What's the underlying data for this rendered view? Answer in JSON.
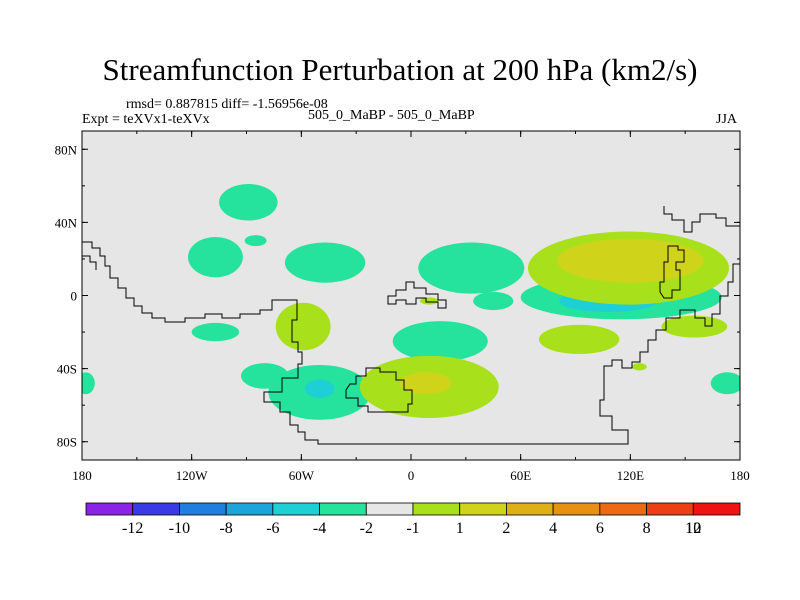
{
  "chart_data": {
    "type": "heatmap",
    "title": "Streamfunction Perturbation at 200 hPa (km2/s)",
    "stats": "rmsd= 0.887815 diff= -1.56956e-08",
    "experiment": "Expt = teXVx1-teXVx",
    "case": "505_0_MaBP - 505_0_MaBP",
    "season": "JJA",
    "x_ticks": [
      {
        "value": -180,
        "label": "180"
      },
      {
        "value": -120,
        "label": "120W"
      },
      {
        "value": -60,
        "label": "60W"
      },
      {
        "value": 0,
        "label": "0"
      },
      {
        "value": 60,
        "label": "60E"
      },
      {
        "value": 120,
        "label": "120E"
      },
      {
        "value": 180,
        "label": "180"
      }
    ],
    "y_ticks": [
      {
        "value": 80,
        "label": "80N"
      },
      {
        "value": 40,
        "label": "40N"
      },
      {
        "value": 0,
        "label": "0"
      },
      {
        "value": -40,
        "label": "40S"
      },
      {
        "value": -80,
        "label": "80S"
      }
    ],
    "xlim": [
      -180,
      180
    ],
    "ylim": [
      -90,
      90
    ],
    "colorbar": {
      "colors": [
        "#8a22e8",
        "#3a3ae6",
        "#1f7fe0",
        "#1aa6dd",
        "#1ecfd6",
        "#25e29c",
        "#e6e6e6",
        "#a9e01c",
        "#cfd41a",
        "#dfb016",
        "#e98f12",
        "#ee6a12",
        "#ee3e14",
        "#ee1212"
      ],
      "labels": [
        "-12",
        "-10",
        "-8",
        "-6",
        "-4",
        "-2",
        "-1",
        "1",
        "2",
        "4",
        "6",
        "8",
        "10",
        "12"
      ]
    },
    "contours": [
      {
        "level": "-1",
        "color": "#25e29c",
        "lon": -107,
        "lat": 21,
        "rlon": 15,
        "rlat": 11
      },
      {
        "level": "-1",
        "color": "#25e29c",
        "lon": -85,
        "lat": 30,
        "rlon": 6,
        "rlat": 3
      },
      {
        "level": "-1",
        "color": "#25e29c",
        "lon": -89,
        "lat": 51,
        "rlon": 16,
        "rlat": 10
      },
      {
        "level": "-1",
        "color": "#25e29c",
        "lon": -47,
        "lat": 18,
        "rlon": 22,
        "rlat": 11
      },
      {
        "level": "-1",
        "color": "#25e29c",
        "lon": -107,
        "lat": -20,
        "rlon": 13,
        "rlat": 5
      },
      {
        "level": "-1",
        "color": "#25e29c",
        "lon": -80,
        "lat": -44,
        "rlon": 13,
        "rlat": 7
      },
      {
        "level": "-1",
        "color": "#25e29c",
        "lon": -50,
        "lat": -53,
        "rlon": 28,
        "rlat": 15
      },
      {
        "level": "-2",
        "color": "#1ecfd6",
        "lon": -50,
        "lat": -51,
        "rlon": 8,
        "rlat": 5
      },
      {
        "level": "-1",
        "color": "#25e29c",
        "lon": 33,
        "lat": 15,
        "rlon": 29,
        "rlat": 14
      },
      {
        "level": "-1",
        "color": "#25e29c",
        "lon": 45,
        "lat": -3,
        "rlon": 11,
        "rlat": 5
      },
      {
        "level": "-1",
        "color": "#25e29c",
        "lon": 16,
        "lat": -25,
        "rlon": 26,
        "rlat": 11
      },
      {
        "level": "-1",
        "color": "#25e29c",
        "lon": 173,
        "lat": -48,
        "rlon": 9,
        "rlat": 6
      },
      {
        "level": "-1",
        "color": "#25e29c",
        "lon": -178,
        "lat": -48,
        "rlon": 5,
        "rlat": 6
      },
      {
        "level": "-1",
        "color": "#25e29c",
        "lon": 115,
        "lat": -1,
        "rlon": 55,
        "rlat": 12
      },
      {
        "level": "-2",
        "color": "#1ecfd6",
        "lon": 108,
        "lat": -3,
        "rlon": 27,
        "rlat": 6
      },
      {
        "level": "1",
        "color": "#a9e01c",
        "lon": -59,
        "lat": -17,
        "rlon": 15,
        "rlat": 13
      },
      {
        "level": "1",
        "color": "#a9e01c",
        "lon": 10,
        "lat": -50,
        "rlon": 38,
        "rlat": 17
      },
      {
        "level": "2",
        "color": "#cfd41a",
        "lon": 8,
        "lat": -48,
        "rlon": 14,
        "rlat": 6
      },
      {
        "level": "1",
        "color": "#a9e01c",
        "lon": 10,
        "lat": -3,
        "rlon": 5,
        "rlat": 2
      },
      {
        "level": "1",
        "color": "#a9e01c",
        "lon": 92,
        "lat": -24,
        "rlon": 22,
        "rlat": 8
      },
      {
        "level": "1",
        "color": "#a9e01c",
        "lon": 119,
        "lat": 15,
        "rlon": 55,
        "rlat": 20
      },
      {
        "level": "2",
        "color": "#cfd41a",
        "lon": 120,
        "lat": 19,
        "rlon": 40,
        "rlat": 12
      },
      {
        "level": "1",
        "color": "#a9e01c",
        "lon": 155,
        "lat": -17,
        "rlon": 18,
        "rlat": 6
      },
      {
        "level": "1",
        "color": "#a9e01c",
        "lon": 125,
        "lat": -39,
        "rlon": 4,
        "rlat": 2
      }
    ]
  }
}
